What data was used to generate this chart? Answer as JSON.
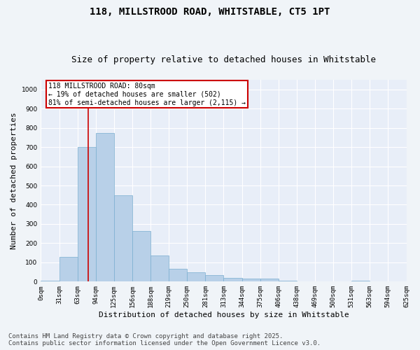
{
  "title_line1": "118, MILLSTROOD ROAD, WHITSTABLE, CT5 1PT",
  "title_line2": "Size of property relative to detached houses in Whitstable",
  "xlabel": "Distribution of detached houses by size in Whitstable",
  "ylabel": "Number of detached properties",
  "bar_color": "#b8d0e8",
  "bar_edge_color": "#7aaed0",
  "background_color": "#e8eef8",
  "fig_background_color": "#f0f4f8",
  "grid_color": "#ffffff",
  "bins": [
    "0sqm",
    "31sqm",
    "63sqm",
    "94sqm",
    "125sqm",
    "156sqm",
    "188sqm",
    "219sqm",
    "250sqm",
    "281sqm",
    "313sqm",
    "344sqm",
    "375sqm",
    "406sqm",
    "438sqm",
    "469sqm",
    "500sqm",
    "531sqm",
    "563sqm",
    "594sqm",
    "625sqm"
  ],
  "bar_heights": [
    5,
    130,
    700,
    775,
    450,
    265,
    135,
    65,
    50,
    35,
    20,
    15,
    15,
    5,
    0,
    0,
    0,
    5,
    0,
    0
  ],
  "property_label": "118 MILLSTROOD ROAD: 80sqm",
  "annotation_line2": "← 19% of detached houses are smaller (502)",
  "annotation_line3": "81% of semi-detached houses are larger (2,115) →",
  "annotation_box_color": "#ffffff",
  "annotation_box_edge": "#cc0000",
  "vline_color": "#cc0000",
  "vline_x_bin": 2.58,
  "ylim": [
    0,
    1050
  ],
  "yticks": [
    0,
    100,
    200,
    300,
    400,
    500,
    600,
    700,
    800,
    900,
    1000
  ],
  "footnote_line1": "Contains HM Land Registry data © Crown copyright and database right 2025.",
  "footnote_line2": "Contains public sector information licensed under the Open Government Licence v3.0.",
  "title_fontsize": 10,
  "subtitle_fontsize": 9,
  "tick_fontsize": 6.5,
  "label_fontsize": 8,
  "footnote_fontsize": 6.5,
  "annot_fontsize": 7
}
